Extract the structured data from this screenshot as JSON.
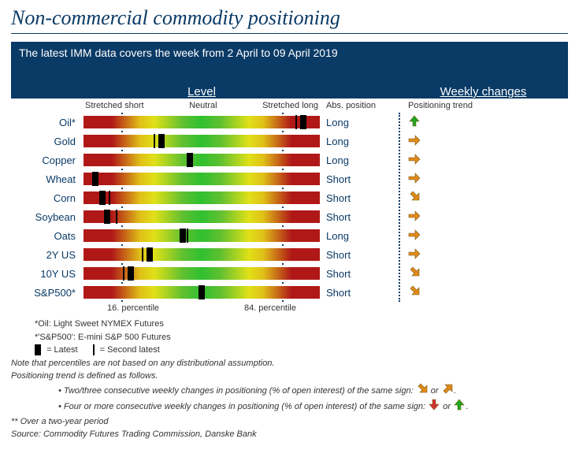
{
  "title": "Non-commercial commodity positioning",
  "subtitle": "The latest IMM data covers the week from 2 April to 09 April 2019",
  "headers": {
    "level": "Level",
    "weekly": "Weekly changes",
    "stretched_short": "Stretched short",
    "neutral": "Neutral",
    "stretched_long": "Stretched long",
    "abs_position": "Abs. position",
    "positioning_trend": "Positioning trend"
  },
  "percentile_labels": {
    "p16": "16. percentile",
    "p84": "84. percentile"
  },
  "rows": [
    {
      "label": "Oil*",
      "latest_pct": 93,
      "second_pct": 90,
      "abs": "Long",
      "trend": "up-green"
    },
    {
      "label": "Gold",
      "latest_pct": 33,
      "second_pct": 30,
      "abs": "Long",
      "trend": "right-orange"
    },
    {
      "label": "Copper",
      "latest_pct": 45,
      "second_pct": 45,
      "abs": "Long",
      "trend": "right-orange"
    },
    {
      "label": "Wheat",
      "latest_pct": 5,
      "second_pct": 5,
      "abs": "Short",
      "trend": "right-orange"
    },
    {
      "label": "Corn",
      "latest_pct": 8,
      "second_pct": 11,
      "abs": "Short",
      "trend": "downright-orange"
    },
    {
      "label": "Soybean",
      "latest_pct": 10,
      "second_pct": 14,
      "abs": "Short",
      "trend": "right-orange"
    },
    {
      "label": "Oats",
      "latest_pct": 42,
      "second_pct": 44,
      "abs": "Long",
      "trend": "right-orange"
    },
    {
      "label": "2Y US",
      "latest_pct": 28,
      "second_pct": 25,
      "abs": "Short",
      "trend": "right-orange"
    },
    {
      "label": "10Y US",
      "latest_pct": 20,
      "second_pct": 17,
      "abs": "Short",
      "trend": "downright-orange"
    },
    {
      "label": "S&P500*",
      "latest_pct": 50,
      "second_pct": 50,
      "abs": "Short",
      "trend": "downright-orange"
    }
  ],
  "footnotes": {
    "oil_note": "*Oil: Light Sweet NYMEX Futures",
    "sp_note": "*'S&P500': E-mini S&P 500 Futures",
    "latest_legend": "= Latest",
    "second_legend": "= Second latest",
    "note1": "Note that percentiles are not based on any distributional assumption.",
    "note2": "Positioning trend is defined as follows.",
    "bullet1_text": "Two/three consecutive weekly changes in positioning (% of open interest) of the same sign:",
    "bullet1_sep": "or",
    "bullet2_text": "Four or more consecutive weekly changes in positioning (% of open interest) of the same sign:",
    "bullet2_sep": "or",
    "two_year": "** Over a two-year period",
    "source": "Source:  Commodity Futures Trading Commission, Danske Bank"
  },
  "colors": {
    "brand": "#0a3a66",
    "arrow_green": "#1ea81e",
    "arrow_orange": "#e08a1a",
    "arrow_red": "#d03030"
  }
}
